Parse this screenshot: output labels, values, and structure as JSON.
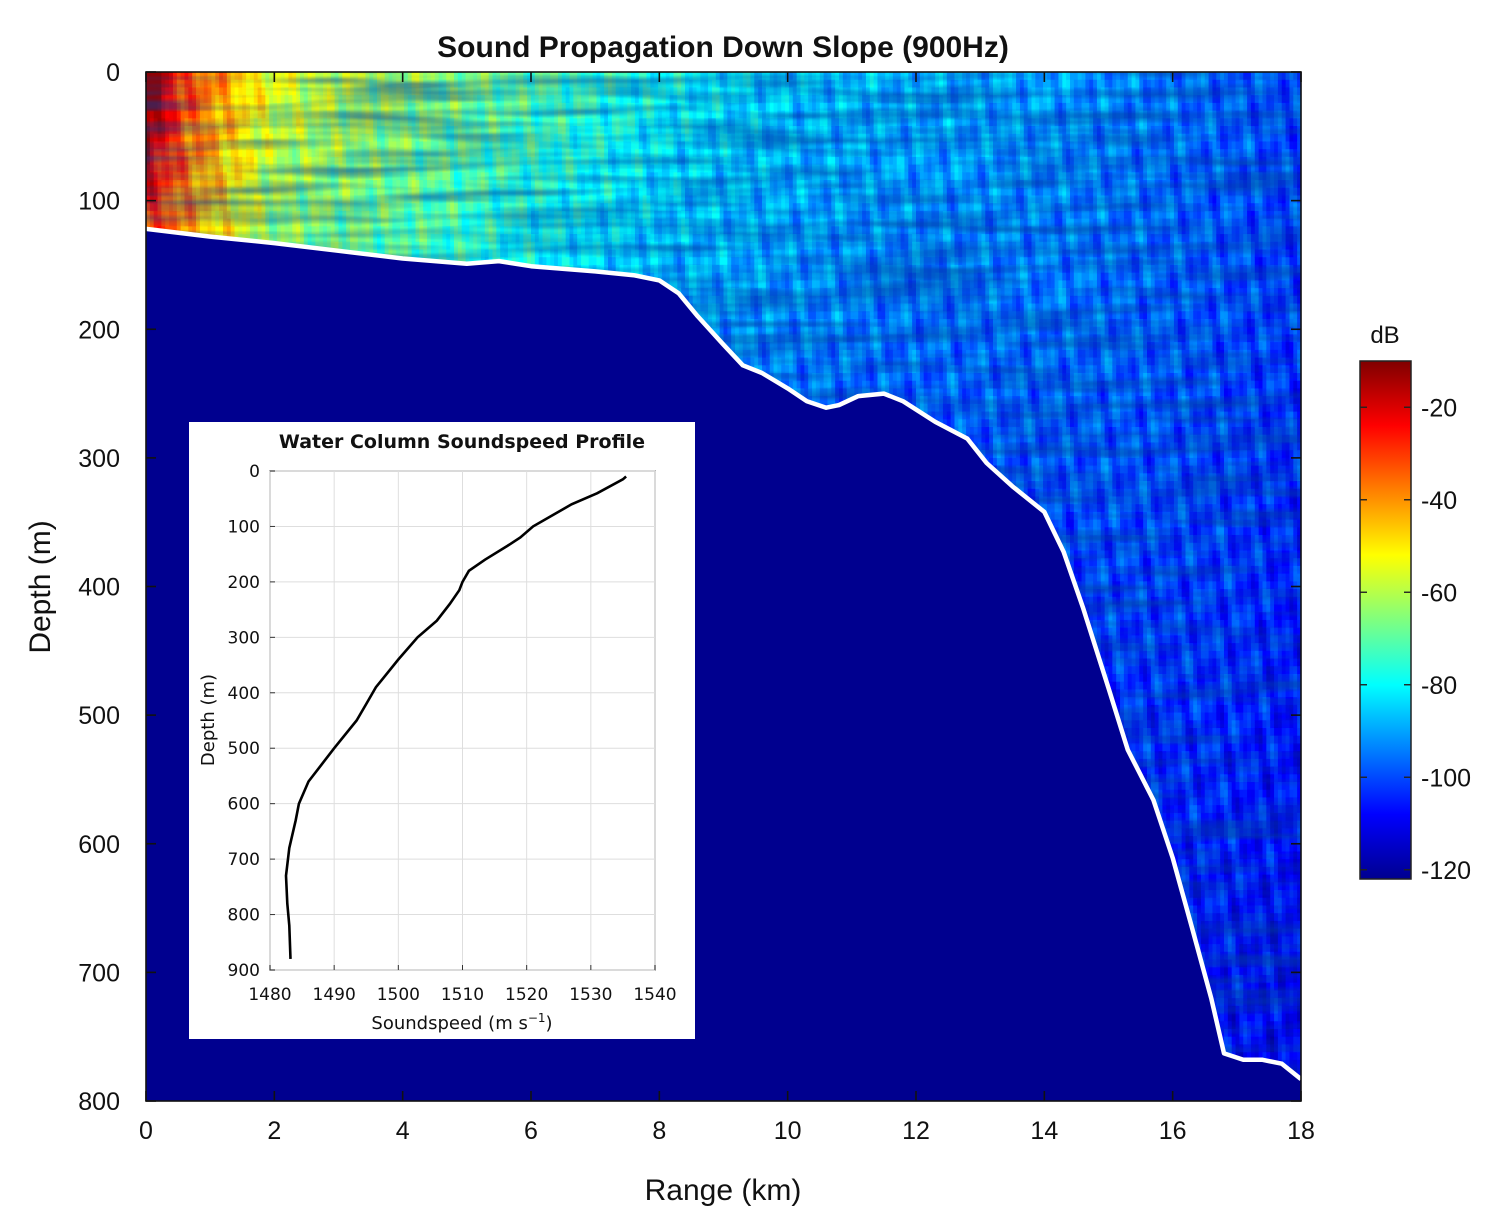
{
  "chart_data": [
    {
      "type": "heatmap",
      "title": "Sound Propagation Down Slope (900Hz)",
      "xlabel": "Range (km)",
      "ylabel": "Depth (m)",
      "xlim": [
        0,
        18
      ],
      "ylim": [
        800,
        0
      ],
      "x_ticks": [
        "0",
        "2",
        "4",
        "6",
        "8",
        "10",
        "12",
        "14",
        "16",
        "18"
      ],
      "y_ticks": [
        "0",
        "100",
        "200",
        "300",
        "400",
        "500",
        "600",
        "700",
        "800"
      ],
      "colormap": "jet",
      "below_seafloor_color": "#00008f",
      "seafloor_line_color": "#ffffff",
      "colorbar": {
        "label": "dB",
        "range": [
          -122,
          -10
        ],
        "ticks": [
          "-20",
          "-40",
          "-60",
          "-80",
          "-100",
          "-120"
        ],
        "tick_values": [
          -20,
          -40,
          -60,
          -80,
          -100,
          -120
        ]
      },
      "seafloor": {
        "range_km": [
          0,
          1,
          2,
          3,
          4,
          5,
          5.5,
          6,
          7,
          7.6,
          8,
          8.3,
          8.6,
          9,
          9.3,
          9.6,
          10,
          10.3,
          10.6,
          10.8,
          11.1,
          11.5,
          11.8,
          12.3,
          12.8,
          13.1,
          13.5,
          13.7,
          14,
          14.3,
          14.6,
          15,
          15.3,
          15.7,
          16,
          16.3,
          16.6,
          16.8,
          17.1,
          17.4,
          17.7,
          18
        ],
        "depth_m": [
          122,
          128,
          133,
          139,
          145,
          149,
          147,
          151,
          155,
          158,
          162,
          172,
          190,
          212,
          228,
          234,
          246,
          256,
          261,
          259,
          252,
          250,
          256,
          272,
          285,
          304,
          322,
          330,
          342,
          373,
          416,
          479,
          527,
          566,
          611,
          665,
          720,
          763,
          768,
          768,
          771,
          783
        ]
      },
      "intensity_samples": {
        "range_km": [
          0,
          2,
          4,
          6,
          8,
          10,
          12,
          14,
          16,
          18
        ],
        "surface_level_db": [
          -20,
          -55,
          -62,
          -70,
          -78,
          -85,
          -88,
          -90,
          -95,
          -100
        ]
      },
      "source": {
        "range_km": 0,
        "depth_m": 0
      }
    },
    {
      "type": "line",
      "title": "Water Column Soundspeed Profile",
      "xlabel": "Soundspeed (m s",
      "xlabel_superscript": "−1",
      "xlabel_suffix": ")",
      "ylabel": "Depth (m)",
      "xlim": [
        1480,
        1540
      ],
      "ylim": [
        900,
        0
      ],
      "x_ticks": [
        "1480",
        "1490",
        "1500",
        "1510",
        "1520",
        "1530",
        "1540"
      ],
      "y_ticks": [
        "0",
        "100",
        "200",
        "300",
        "400",
        "500",
        "600",
        "700",
        "800",
        "900"
      ],
      "grid": true,
      "series": [
        {
          "soundspeed": [
            1535.5,
            1535,
            1531,
            1527,
            1524,
            1521,
            1519,
            1517,
            1513.5,
            1511,
            1510,
            1509.5,
            1508,
            1506,
            1503,
            1500,
            1496.5,
            1495,
            1493.5,
            1490,
            1488,
            1486,
            1484.5,
            1484,
            1483,
            1482.5,
            1482.7,
            1483,
            1483.2
          ],
          "depth": [
            10,
            15,
            40,
            60,
            80,
            100,
            120,
            135,
            160,
            180,
            200,
            215,
            240,
            270,
            300,
            340,
            390,
            420,
            450,
            500,
            530,
            560,
            600,
            630,
            680,
            730,
            780,
            820,
            880
          ]
        }
      ]
    }
  ]
}
